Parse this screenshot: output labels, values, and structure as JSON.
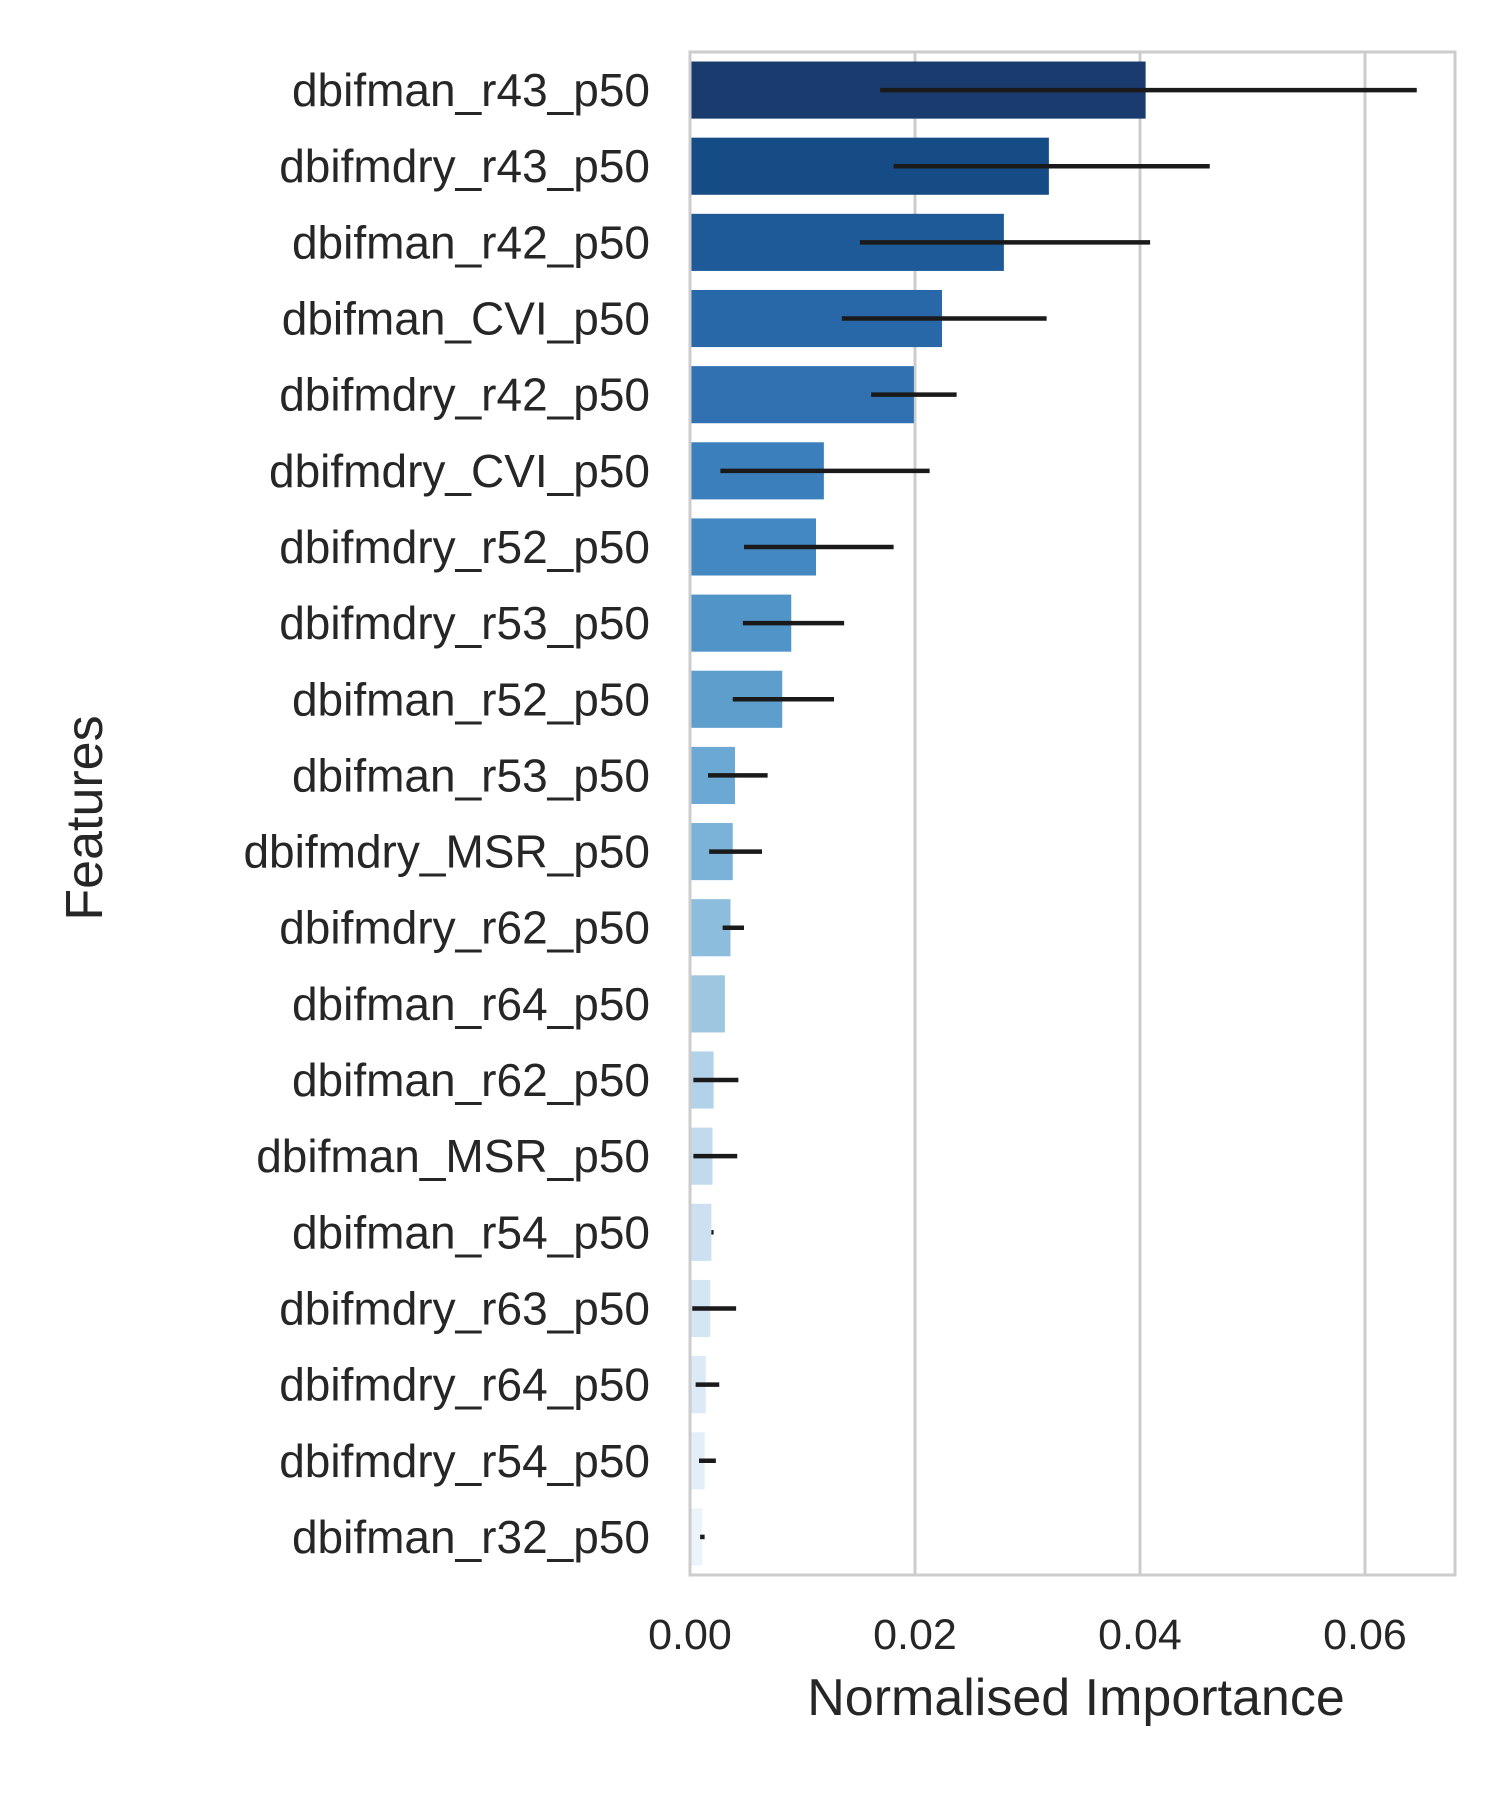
{
  "chart_data": {
    "type": "bar",
    "orientation": "horizontal",
    "xlabel": "Normalised Importance",
    "ylabel": "Features",
    "xlim": [
      0,
      0.068
    ],
    "xticks": [
      0.0,
      0.02,
      0.04,
      0.06
    ],
    "xtick_labels": [
      "0.00",
      "0.02",
      "0.04",
      "0.06"
    ],
    "grid": "vertical",
    "palette": [
      "#1a3b6e",
      "#164c86",
      "#1d5a97",
      "#2868a8",
      "#3171b1",
      "#3b80bc",
      "#4488c1",
      "#5195c8",
      "#5d9ecd",
      "#6ba8d3",
      "#7ab2d8",
      "#8cbddd",
      "#9dc6e1",
      "#b1d2e8",
      "#c1daed",
      "#cde0f2",
      "#d4e5f4",
      "#dce9f6",
      "#e3eef8",
      "#ebf3fb"
    ],
    "categories": [
      "dbifman_r43_p50",
      "dbifmdry_r43_p50",
      "dbifman_r42_p50",
      "dbifman_CVI_p50",
      "dbifmdry_r42_p50",
      "dbifmdry_CVI_p50",
      "dbifmdry_r52_p50",
      "dbifmdry_r53_p50",
      "dbifman_r52_p50",
      "dbifman_r53_p50",
      "dbifmdry_MSR_p50",
      "dbifmdry_r62_p50",
      "dbifman_r64_p50",
      "dbifman_r62_p50",
      "dbifman_MSR_p50",
      "dbifman_r54_p50",
      "dbifmdry_r63_p50",
      "dbifmdry_r64_p50",
      "dbifmdry_r54_p50",
      "dbifman_r32_p50"
    ],
    "values": [
      0.0405,
      0.0319,
      0.0279,
      0.0224,
      0.0199,
      0.0119,
      0.0112,
      0.009,
      0.0082,
      0.004,
      0.0038,
      0.0036,
      0.0031,
      0.0021,
      0.002,
      0.0019,
      0.0018,
      0.0014,
      0.0013,
      0.0011
    ],
    "error_low": [
      0.0169,
      0.0181,
      0.0151,
      0.0135,
      0.0161,
      0.0027,
      0.0048,
      0.0047,
      0.0038,
      0.0016,
      0.0017,
      0.0029,
      null,
      0.0003,
      0.0003,
      0.0019,
      0.0002,
      0.0005,
      0.0008,
      0.0009
    ],
    "error_high": [
      0.0646,
      0.0462,
      0.0409,
      0.0317,
      0.0237,
      0.0213,
      0.0181,
      0.0137,
      0.0128,
      0.0069,
      0.0064,
      0.0048,
      null,
      0.0043,
      0.0042,
      0.0021,
      0.0041,
      0.0026,
      0.0023,
      0.0013
    ]
  }
}
